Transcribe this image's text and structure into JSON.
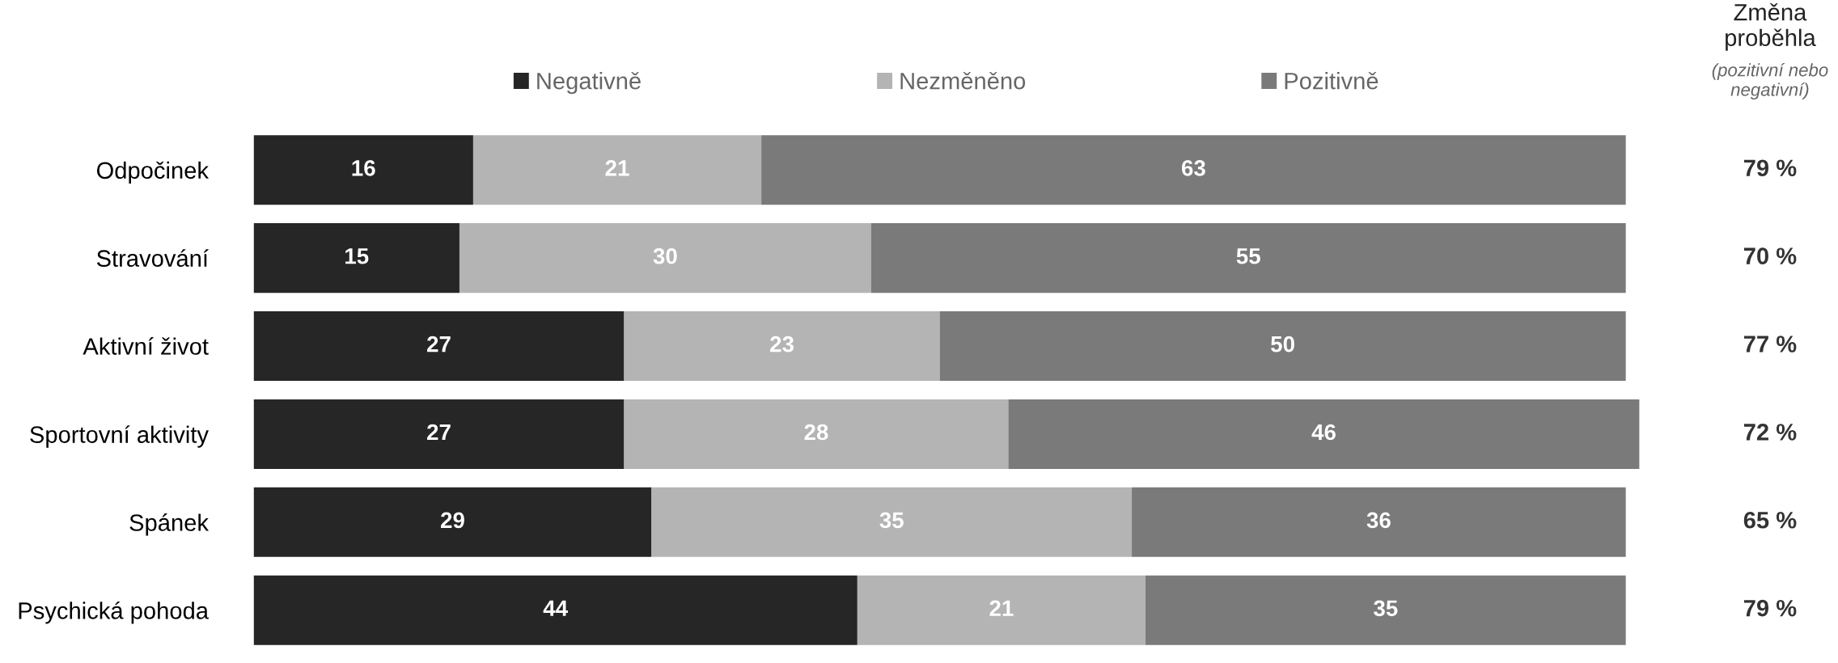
{
  "chart_data": {
    "type": "bar",
    "orientation": "horizontal",
    "stacked": true,
    "data_labels": true,
    "legend": "top",
    "grid": false,
    "tick_labels": "y",
    "categories": [
      "Odpočinek",
      "Stravování",
      "Aktivní život",
      "Sportovní aktivity",
      "Spánek",
      "Psychická pohoda"
    ],
    "series": [
      {
        "name": "Negativně",
        "color": "#262626",
        "values": [
          16,
          15,
          27,
          27,
          29,
          44
        ]
      },
      {
        "name": "Nezměněno",
        "color": "#b4b4b4",
        "values": [
          21,
          30,
          23,
          28,
          35,
          21
        ]
      },
      {
        "name": "Pozitivně",
        "color": "#7a7a7a",
        "values": [
          63,
          55,
          50,
          46,
          36,
          35
        ]
      }
    ],
    "annotations": [
      "Změna proběhla",
      "(pozitivní nebo negativní)",
      "79 %",
      "70 %",
      "77 %",
      "72 %",
      "65 %",
      "79 %"
    ]
  }
}
